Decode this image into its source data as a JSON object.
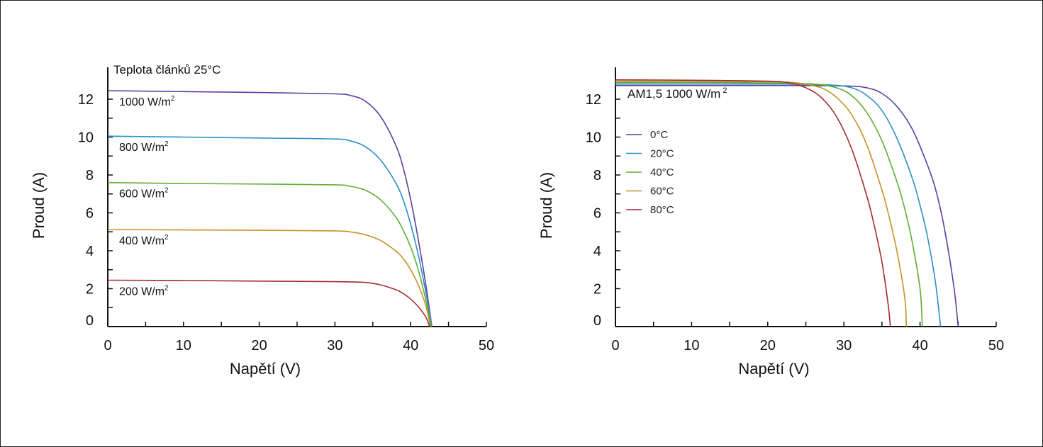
{
  "chart_data": [
    {
      "type": "line",
      "annotation": "Teplota článků 25°C",
      "xlabel": "Napětí (V)",
      "ylabel": "Proud (A)",
      "xlim": [
        0,
        50
      ],
      "ylim": [
        0,
        13
      ],
      "xticks": [
        "0",
        "10",
        "20",
        "30",
        "40",
        "50"
      ],
      "yticks": [
        "0",
        "2",
        "4",
        "6",
        "8",
        "10",
        "12"
      ],
      "series": [
        {
          "name": "1000 W/m²",
          "label_text": "1000 W/m",
          "label_sup": "2",
          "color": "#5b3f9c",
          "points": [
            [
              0,
              12.45
            ],
            [
              10,
              12.4
            ],
            [
              20,
              12.35
            ],
            [
              30,
              12.28
            ],
            [
              32,
              12.2
            ],
            [
              34,
              11.9
            ],
            [
              36,
              11.1
            ],
            [
              38,
              9.6
            ],
            [
              39,
              8.4
            ],
            [
              40,
              6.7
            ],
            [
              41,
              4.6
            ],
            [
              42,
              2.2
            ],
            [
              42.8,
              0
            ]
          ]
        },
        {
          "name": "800 W/m²",
          "label_text": "800 W/m",
          "label_sup": "2",
          "color": "#2b8fc7",
          "points": [
            [
              0,
              10.05
            ],
            [
              10,
              10.0
            ],
            [
              20,
              9.95
            ],
            [
              30,
              9.9
            ],
            [
              32,
              9.8
            ],
            [
              34,
              9.5
            ],
            [
              36,
              8.8
            ],
            [
              38,
              7.6
            ],
            [
              39,
              6.7
            ],
            [
              40,
              5.4
            ],
            [
              41,
              3.8
            ],
            [
              42,
              1.8
            ],
            [
              42.8,
              0
            ]
          ]
        },
        {
          "name": "600 W/m²",
          "label_text": "600 W/m",
          "label_sup": "2",
          "color": "#5fae33",
          "points": [
            [
              0,
              7.6
            ],
            [
              10,
              7.55
            ],
            [
              20,
              7.52
            ],
            [
              30,
              7.48
            ],
            [
              32,
              7.4
            ],
            [
              34,
              7.2
            ],
            [
              36,
              6.7
            ],
            [
              38,
              5.8
            ],
            [
              39,
              5.1
            ],
            [
              40,
              4.2
            ],
            [
              41,
              3.0
            ],
            [
              42,
              1.4
            ],
            [
              42.7,
              0
            ]
          ]
        },
        {
          "name": "400 W/m²",
          "label_text": "400 W/m",
          "label_sup": "2",
          "color": "#c59326",
          "points": [
            [
              0,
              5.12
            ],
            [
              10,
              5.1
            ],
            [
              20,
              5.08
            ],
            [
              30,
              5.05
            ],
            [
              32,
              5.0
            ],
            [
              34,
              4.85
            ],
            [
              36,
              4.55
            ],
            [
              38,
              4.0
            ],
            [
              39,
              3.6
            ],
            [
              40,
              3.0
            ],
            [
              41,
              2.2
            ],
            [
              42,
              1.1
            ],
            [
              42.6,
              0
            ]
          ]
        },
        {
          "name": "200 W/m²",
          "label_text": "200 W/m",
          "label_sup": "2",
          "color": "#a32c2c",
          "points": [
            [
              0,
              2.45
            ],
            [
              10,
              2.43
            ],
            [
              20,
              2.4
            ],
            [
              30,
              2.37
            ],
            [
              34,
              2.33
            ],
            [
              36,
              2.2
            ],
            [
              38,
              1.95
            ],
            [
              39,
              1.75
            ],
            [
              40,
              1.45
            ],
            [
              41,
              1.05
            ],
            [
              42,
              0.5
            ],
            [
              42.5,
              0
            ]
          ]
        }
      ]
    },
    {
      "type": "line",
      "annotation": "AM1,5 1000 W/m",
      "annotation_sup": "2",
      "xlabel": "Napětí (V)",
      "ylabel": "Proud (A)",
      "xlim": [
        0,
        50
      ],
      "ylim": [
        0,
        13
      ],
      "xticks": [
        "0",
        "10",
        "20",
        "30",
        "40",
        "50"
      ],
      "yticks": [
        "0",
        "2",
        "4",
        "6",
        "8",
        "10",
        "12"
      ],
      "legend_position": "left",
      "series": [
        {
          "name": "0°C",
          "color": "#5b3f9c",
          "points": [
            [
              0,
              12.72
            ],
            [
              10,
              12.72
            ],
            [
              20,
              12.72
            ],
            [
              30,
              12.7
            ],
            [
              33,
              12.6
            ],
            [
              35,
              12.3
            ],
            [
              37,
              11.6
            ],
            [
              39,
              10.4
            ],
            [
              41,
              8.5
            ],
            [
              42,
              7.3
            ],
            [
              43,
              5.6
            ],
            [
              44,
              3.3
            ],
            [
              44.6,
              1.6
            ],
            [
              45,
              0
            ]
          ]
        },
        {
          "name": "20°C",
          "color": "#2b8fc7",
          "points": [
            [
              0,
              12.8
            ],
            [
              10,
              12.8
            ],
            [
              20,
              12.8
            ],
            [
              28,
              12.75
            ],
            [
              31,
              12.6
            ],
            [
              33,
              12.2
            ],
            [
              35,
              11.4
            ],
            [
              37,
              9.9
            ],
            [
              39,
              7.8
            ],
            [
              40,
              6.4
            ],
            [
              41,
              4.7
            ],
            [
              42,
              2.4
            ],
            [
              42.7,
              0
            ]
          ]
        },
        {
          "name": "40°C",
          "color": "#5fae33",
          "points": [
            [
              0,
              12.88
            ],
            [
              10,
              12.88
            ],
            [
              20,
              12.86
            ],
            [
              26,
              12.8
            ],
            [
              29,
              12.6
            ],
            [
              31,
              12.2
            ],
            [
              33,
              11.3
            ],
            [
              35,
              9.8
            ],
            [
              37,
              7.6
            ],
            [
              38,
              6.2
            ],
            [
              39,
              4.4
            ],
            [
              40,
              2.0
            ],
            [
              40.3,
              0
            ]
          ]
        },
        {
          "name": "60°C",
          "color": "#c59326",
          "points": [
            [
              0,
              12.95
            ],
            [
              10,
              12.95
            ],
            [
              20,
              12.92
            ],
            [
              24,
              12.85
            ],
            [
              27,
              12.6
            ],
            [
              29,
              12.1
            ],
            [
              31,
              11.2
            ],
            [
              33,
              9.6
            ],
            [
              35,
              7.2
            ],
            [
              36,
              5.7
            ],
            [
              37,
              3.9
            ],
            [
              38,
              1.5
            ],
            [
              38.2,
              0
            ]
          ]
        },
        {
          "name": "80°C",
          "color": "#a32c2c",
          "points": [
            [
              0,
              13.02
            ],
            [
              10,
              13.0
            ],
            [
              20,
              12.95
            ],
            [
              23,
              12.85
            ],
            [
              25,
              12.6
            ],
            [
              27,
              12.1
            ],
            [
              29,
              11.1
            ],
            [
              31,
              9.4
            ],
            [
              33,
              6.9
            ],
            [
              34,
              5.3
            ],
            [
              35,
              3.4
            ],
            [
              35.8,
              1.2
            ],
            [
              36.1,
              0
            ]
          ]
        }
      ]
    }
  ]
}
